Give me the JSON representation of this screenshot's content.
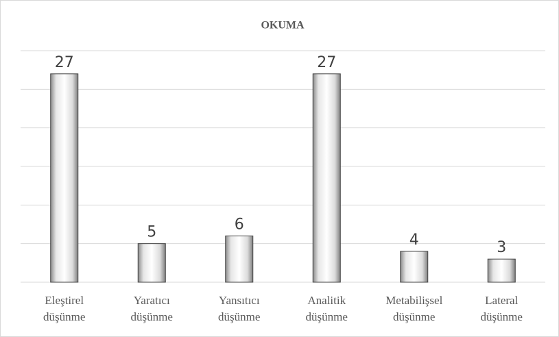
{
  "chart_data": {
    "type": "bar",
    "title": "OKUMA",
    "categories": [
      "Eleştirel düşünme",
      "Yaratıcı düşünme",
      "Yansıtıcı düşünme",
      "Analitik düşünme",
      "Metabilişsel düşünme",
      "Lateral düşünme"
    ],
    "values": [
      27,
      5,
      6,
      27,
      4,
      3
    ],
    "ylim": [
      0,
      30
    ],
    "yticks": [
      0,
      5,
      10,
      15,
      20,
      25,
      30
    ],
    "grid": true,
    "data_labels": true
  }
}
